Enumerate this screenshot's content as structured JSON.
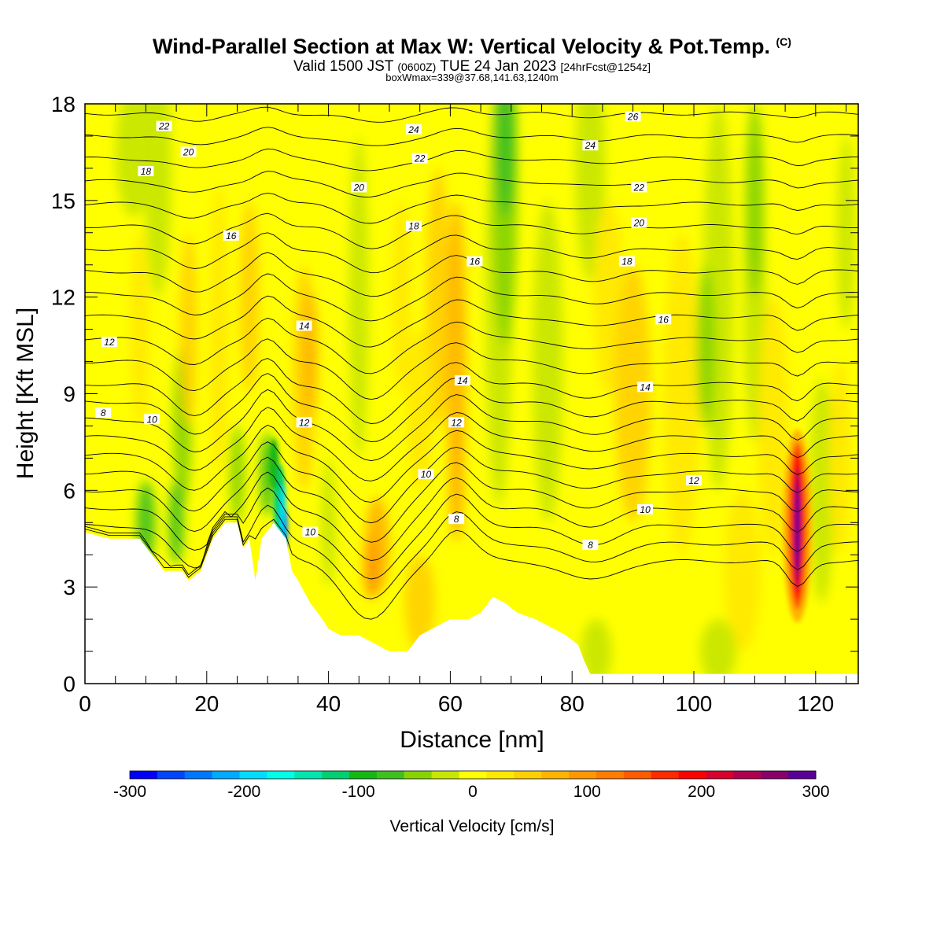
{
  "title": {
    "main": "Wind-Parallel Section at Max W: Vertical Velocity & Pot.Temp.",
    "copyright": "(C)",
    "line2_a": "Valid 1500 JST",
    "line2_b": "(0600Z)",
    "line2_c": "TUE 24 Jan 2023",
    "line2_d": "[24hrFcst@1254z]",
    "line3": "boxWmax=339@37.68,141.63,1240m"
  },
  "chart_data": {
    "type": "heatmap",
    "xlabel": "Distance [nm]",
    "ylabel": "Height [Kft MSL]",
    "xlim": [
      0,
      127
    ],
    "ylim": [
      0,
      18
    ],
    "xticks": [
      0,
      20,
      40,
      60,
      80,
      100,
      120
    ],
    "yticks": [
      0,
      3,
      6,
      9,
      12,
      15,
      18
    ],
    "colorbar": {
      "label": "Vertical Velocity [cm/s]",
      "range": [
        -300,
        300
      ],
      "tick_values": [
        -300,
        -200,
        -100,
        0,
        100,
        200,
        300
      ],
      "colors": [
        "#0000ff",
        "#0044ff",
        "#0077ff",
        "#00aaff",
        "#00ddff",
        "#00ffe8",
        "#00e6b0",
        "#00d070",
        "#14b814",
        "#40c020",
        "#88d400",
        "#c8e600",
        "#ffff00",
        "#ffe800",
        "#ffd000",
        "#ffb400",
        "#ff9800",
        "#ff7c00",
        "#ff5a00",
        "#ff2a00",
        "#ff0000",
        "#d8002c",
        "#b00050",
        "#880068",
        "#5a0098"
      ]
    },
    "terrain_kft": [
      [
        0,
        4.7
      ],
      [
        4,
        4.5
      ],
      [
        9,
        4.5
      ],
      [
        11,
        4.0
      ],
      [
        13,
        3.5
      ],
      [
        16,
        3.5
      ],
      [
        17,
        3.2
      ],
      [
        19,
        3.5
      ],
      [
        21,
        4.5
      ],
      [
        23,
        5.0
      ],
      [
        25,
        5.0
      ],
      [
        26,
        4.2
      ],
      [
        27,
        4.5
      ],
      [
        28,
        3.2
      ],
      [
        29,
        4.5
      ],
      [
        31,
        5.0
      ],
      [
        33,
        4.5
      ],
      [
        34,
        3.5
      ],
      [
        35,
        3.2
      ],
      [
        37,
        2.5
      ],
      [
        39,
        2.0
      ],
      [
        40,
        1.7
      ],
      [
        42,
        1.5
      ],
      [
        45,
        1.5
      ],
      [
        48,
        1.2
      ],
      [
        50,
        1.0
      ],
      [
        53,
        1.0
      ],
      [
        55,
        1.5
      ],
      [
        57,
        1.7
      ],
      [
        60,
        2.0
      ],
      [
        63,
        2.0
      ],
      [
        65,
        2.2
      ],
      [
        67,
        2.7
      ],
      [
        69,
        2.5
      ],
      [
        71,
        2.2
      ],
      [
        74,
        2.0
      ],
      [
        77,
        1.7
      ],
      [
        79,
        1.5
      ],
      [
        81,
        1.2
      ],
      [
        82,
        0.7
      ],
      [
        83,
        0.3
      ],
      [
        127,
        0.3
      ]
    ],
    "theta_labels": [
      {
        "x": 13,
        "y": 17.3,
        "text": "22"
      },
      {
        "x": 17,
        "y": 16.5,
        "text": "20"
      },
      {
        "x": 10,
        "y": 15.9,
        "text": "18"
      },
      {
        "x": 24,
        "y": 13.9,
        "text": "16"
      },
      {
        "x": 4,
        "y": 10.6,
        "text": "12"
      },
      {
        "x": 3,
        "y": 8.4,
        "text": "8"
      },
      {
        "x": 11,
        "y": 8.2,
        "text": "10"
      },
      {
        "x": 36,
        "y": 11.1,
        "text": "14"
      },
      {
        "x": 36,
        "y": 8.1,
        "text": "12"
      },
      {
        "x": 37,
        "y": 4.7,
        "text": "10"
      },
      {
        "x": 45,
        "y": 15.4,
        "text": "20"
      },
      {
        "x": 54,
        "y": 17.2,
        "text": "24"
      },
      {
        "x": 55,
        "y": 16.3,
        "text": "22"
      },
      {
        "x": 54,
        "y": 14.2,
        "text": "18"
      },
      {
        "x": 64,
        "y": 13.1,
        "text": "16"
      },
      {
        "x": 62,
        "y": 9.4,
        "text": "14"
      },
      {
        "x": 61,
        "y": 8.1,
        "text": "12"
      },
      {
        "x": 56,
        "y": 6.5,
        "text": "10"
      },
      {
        "x": 61,
        "y": 5.1,
        "text": "8"
      },
      {
        "x": 90,
        "y": 17.6,
        "text": "26"
      },
      {
        "x": 83,
        "y": 16.7,
        "text": "24"
      },
      {
        "x": 91,
        "y": 15.4,
        "text": "22"
      },
      {
        "x": 91,
        "y": 14.3,
        "text": "20"
      },
      {
        "x": 89,
        "y": 13.1,
        "text": "18"
      },
      {
        "x": 95,
        "y": 11.3,
        "text": "16"
      },
      {
        "x": 92,
        "y": 9.2,
        "text": "14"
      },
      {
        "x": 100,
        "y": 6.3,
        "text": "12"
      },
      {
        "x": 92,
        "y": 5.4,
        "text": "10"
      },
      {
        "x": 83,
        "y": 4.3,
        "text": "8"
      }
    ]
  }
}
